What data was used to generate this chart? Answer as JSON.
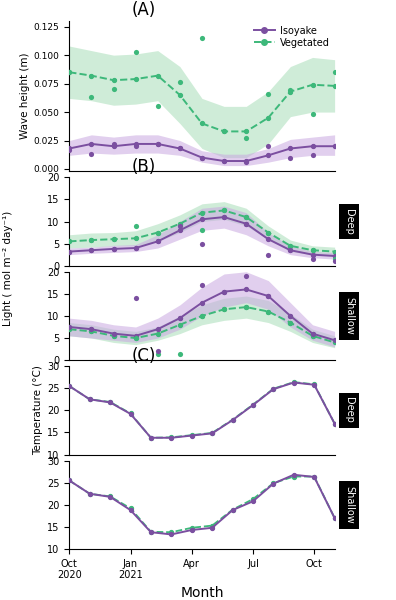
{
  "panel_A_label": "(A)",
  "panel_B_label": "(B)",
  "panel_C_label": "(C)",
  "legend_isoyake": "Isoyake",
  "legend_vegetated": "Vegetated",
  "color_isoyake": "#7B4FA0",
  "color_vegetated": "#3DB87A",
  "color_isoyake_fill": "#C9A8E0",
  "color_vegetated_fill": "#A8DEB8",
  "ylabel_A": "Wave height (m)",
  "ylabel_B": "Light ( mol m⁻² day⁻¹)",
  "ylabel_C": "Temperature (°C)",
  "xlabel": "Month",
  "wave_x": [
    0,
    1,
    2,
    3,
    4,
    5,
    6,
    7,
    8,
    9,
    10,
    11,
    12
  ],
  "wave_iso_mean": [
    0.018,
    0.022,
    0.02,
    0.022,
    0.022,
    0.018,
    0.01,
    0.007,
    0.007,
    0.012,
    0.018,
    0.02,
    0.02
  ],
  "wave_iso_lo": [
    0.012,
    0.014,
    0.013,
    0.014,
    0.014,
    0.012,
    0.006,
    0.003,
    0.003,
    0.006,
    0.01,
    0.012,
    0.012
  ],
  "wave_iso_hi": [
    0.025,
    0.03,
    0.028,
    0.03,
    0.03,
    0.025,
    0.016,
    0.013,
    0.013,
    0.018,
    0.026,
    0.028,
    0.03
  ],
  "wave_iso_pts": [
    [
      0,
      0.017
    ],
    [
      1,
      0.013
    ],
    [
      2,
      0.022
    ],
    [
      3,
      0.02
    ],
    [
      4,
      0.022
    ],
    [
      5,
      0.018
    ],
    [
      6,
      0.01
    ],
    [
      7,
      0.007
    ],
    [
      8,
      0.006
    ],
    [
      9,
      0.02
    ],
    [
      10,
      0.01
    ],
    [
      11,
      0.012
    ],
    [
      12,
      0.02
    ]
  ],
  "wave_veg_mean": [
    0.085,
    0.082,
    0.078,
    0.079,
    0.082,
    0.065,
    0.04,
    0.033,
    0.033,
    0.045,
    0.068,
    0.074,
    0.073
  ],
  "wave_veg_lo": [
    0.062,
    0.06,
    0.056,
    0.057,
    0.06,
    0.04,
    0.018,
    0.01,
    0.01,
    0.022,
    0.046,
    0.05,
    0.05
  ],
  "wave_veg_hi": [
    0.108,
    0.104,
    0.1,
    0.101,
    0.104,
    0.09,
    0.062,
    0.055,
    0.055,
    0.068,
    0.09,
    0.098,
    0.096
  ],
  "wave_veg_pts": [
    [
      0,
      0.085
    ],
    [
      1,
      0.063
    ],
    [
      2,
      0.07
    ],
    [
      3,
      0.103
    ],
    [
      4,
      0.055
    ],
    [
      5,
      0.076
    ],
    [
      6,
      0.115
    ],
    [
      7,
      0.033
    ],
    [
      8,
      0.027
    ],
    [
      9,
      0.066
    ],
    [
      10,
      0.069
    ],
    [
      11,
      0.048
    ],
    [
      12,
      0.085
    ]
  ],
  "light_deep_x": [
    0,
    1,
    2,
    3,
    4,
    5,
    6,
    7,
    8,
    9,
    10,
    11,
    12
  ],
  "light_deep_iso_mean": [
    3.2,
    3.5,
    3.8,
    4.0,
    5.5,
    8.0,
    10.5,
    11.0,
    9.5,
    6.0,
    3.5,
    2.5,
    2.2
  ],
  "light_deep_iso_lo": [
    2.5,
    2.8,
    3.0,
    3.2,
    4.0,
    6.0,
    8.0,
    8.5,
    7.0,
    4.5,
    2.5,
    1.8,
    1.5
  ],
  "light_deep_iso_hi": [
    4.0,
    4.2,
    4.6,
    4.8,
    7.0,
    10.0,
    13.0,
    13.5,
    12.0,
    7.5,
    4.5,
    3.2,
    3.0
  ],
  "light_deep_iso_pts": [
    [
      0,
      3.2
    ],
    [
      1,
      3.5
    ],
    [
      2,
      3.8
    ],
    [
      3,
      4.0
    ],
    [
      4,
      5.5
    ],
    [
      5,
      9.0
    ],
    [
      6,
      5.0
    ],
    [
      7,
      11.0
    ],
    [
      8,
      9.5
    ],
    [
      9,
      2.5
    ],
    [
      10,
      3.5
    ],
    [
      11,
      1.5
    ],
    [
      12,
      1.0
    ]
  ],
  "light_deep_veg_mean": [
    5.5,
    5.8,
    6.0,
    6.2,
    7.5,
    9.5,
    12.0,
    12.5,
    11.0,
    7.5,
    4.5,
    3.5,
    3.2
  ],
  "light_deep_veg_lo": [
    4.0,
    4.2,
    4.5,
    4.5,
    5.5,
    7.5,
    10.0,
    10.5,
    9.0,
    6.0,
    3.2,
    2.5,
    2.2
  ],
  "light_deep_veg_hi": [
    7.0,
    7.4,
    7.5,
    7.9,
    9.5,
    11.5,
    14.0,
    14.5,
    13.0,
    9.0,
    5.8,
    4.5,
    4.2
  ],
  "light_deep_veg_pts": [
    [
      0,
      5.5
    ],
    [
      1,
      5.8
    ],
    [
      2,
      6.0
    ],
    [
      3,
      9.0
    ],
    [
      4,
      7.5
    ],
    [
      5,
      9.5
    ],
    [
      6,
      8.0
    ],
    [
      7,
      12.5
    ],
    [
      8,
      11.0
    ],
    [
      9,
      7.5
    ],
    [
      10,
      4.5
    ],
    [
      11,
      3.5
    ],
    [
      12,
      1.5
    ]
  ],
  "light_shallow_x": [
    0,
    1,
    2,
    3,
    4,
    5,
    6,
    7,
    8,
    9,
    10,
    11,
    12
  ],
  "light_shallow_iso_mean": [
    7.5,
    7.0,
    6.0,
    5.5,
    7.0,
    9.5,
    13.0,
    15.5,
    16.0,
    14.5,
    10.0,
    6.0,
    4.5
  ],
  "light_shallow_iso_lo": [
    5.5,
    5.0,
    4.5,
    4.0,
    5.0,
    7.0,
    10.0,
    12.0,
    13.0,
    11.5,
    7.5,
    4.5,
    3.0
  ],
  "light_shallow_iso_hi": [
    9.5,
    9.0,
    8.0,
    7.5,
    9.5,
    12.5,
    16.5,
    19.5,
    20.0,
    18.0,
    13.0,
    8.0,
    6.5
  ],
  "light_shallow_iso_pts": [
    [
      0,
      7.5
    ],
    [
      1,
      7.0
    ],
    [
      2,
      6.0
    ],
    [
      3,
      14.0
    ],
    [
      4,
      2.0
    ],
    [
      5,
      9.5
    ],
    [
      6,
      17.0
    ],
    [
      7,
      15.5
    ],
    [
      8,
      19.0
    ],
    [
      9,
      14.5
    ],
    [
      10,
      10.0
    ],
    [
      11,
      6.0
    ],
    [
      12,
      4.5
    ]
  ],
  "light_shallow_veg_mean": [
    7.0,
    6.5,
    5.5,
    5.0,
    6.0,
    8.0,
    10.0,
    11.5,
    12.0,
    11.0,
    8.5,
    5.5,
    4.0
  ],
  "light_shallow_veg_lo": [
    5.5,
    5.0,
    4.0,
    3.5,
    4.5,
    6.0,
    8.0,
    9.0,
    9.5,
    8.5,
    6.5,
    4.0,
    2.8
  ],
  "light_shallow_veg_hi": [
    8.5,
    8.0,
    7.0,
    6.5,
    7.5,
    10.0,
    12.5,
    14.0,
    14.5,
    13.5,
    10.5,
    7.0,
    5.5
  ],
  "light_shallow_veg_pts": [
    [
      0,
      7.0
    ],
    [
      1,
      6.5
    ],
    [
      2,
      5.5
    ],
    [
      3,
      5.0
    ],
    [
      4,
      1.5
    ],
    [
      5,
      1.5
    ],
    [
      6,
      10.0
    ],
    [
      7,
      11.5
    ],
    [
      8,
      12.0
    ],
    [
      9,
      11.0
    ],
    [
      10,
      8.5
    ],
    [
      11,
      5.5
    ],
    [
      12,
      4.0
    ]
  ],
  "temp_deep_x": [
    0,
    1,
    2,
    3,
    4,
    5,
    6,
    7,
    8,
    9,
    10,
    11,
    12,
    13
  ],
  "temp_deep_iso": [
    25.5,
    22.5,
    21.8,
    19.2,
    13.8,
    13.8,
    14.3,
    14.8,
    17.8,
    21.2,
    24.8,
    26.3,
    25.8,
    17.0
  ],
  "temp_deep_veg": [
    25.5,
    22.5,
    21.9,
    19.3,
    13.8,
    13.9,
    14.4,
    14.9,
    17.9,
    21.3,
    24.9,
    26.4,
    25.9,
    17.0
  ],
  "temp_shallow_x": [
    0,
    1,
    2,
    3,
    4,
    5,
    6,
    7,
    8,
    9,
    10,
    11,
    12,
    13
  ],
  "temp_shallow_iso": [
    25.5,
    22.5,
    21.8,
    18.8,
    13.8,
    13.3,
    14.3,
    14.8,
    18.8,
    20.8,
    24.8,
    26.8,
    26.3,
    17.0
  ],
  "temp_shallow_veg": [
    25.5,
    22.5,
    21.9,
    19.2,
    13.9,
    13.8,
    14.8,
    15.3,
    18.9,
    21.3,
    24.9,
    26.4,
    26.4,
    17.0
  ],
  "xtick_positions": [
    0,
    3,
    6,
    9,
    12
  ],
  "xtick_labels": [
    "Oct\n2020",
    "Jan\n2021",
    "Apr",
    "Jul",
    "Oct"
  ],
  "ylim_wave": [
    -0.002,
    0.13
  ],
  "ylim_light": [
    0,
    20
  ],
  "ylim_temp": [
    10,
    30
  ],
  "wave_yticks": [
    0.0,
    0.025,
    0.05,
    0.075,
    0.1,
    0.125
  ],
  "light_yticks": [
    0,
    5,
    10,
    15,
    20
  ],
  "temp_yticks": [
    10,
    15,
    20,
    25,
    30
  ]
}
